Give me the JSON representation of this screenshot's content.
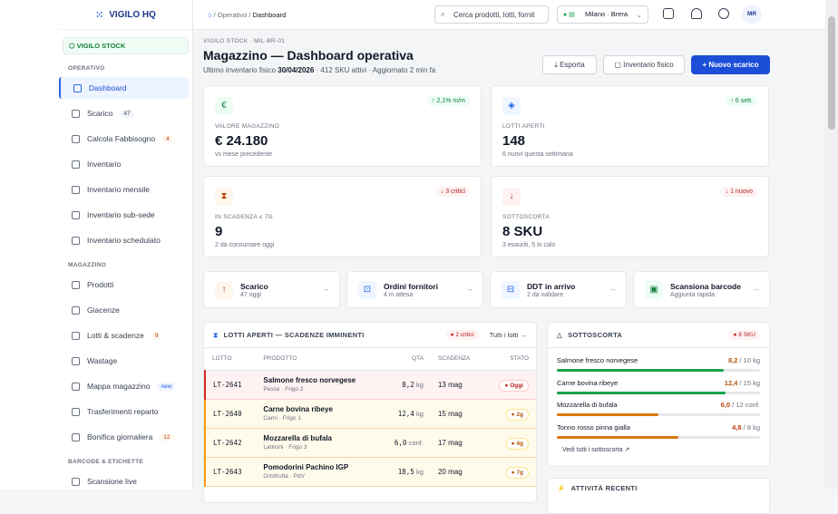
{
  "sidebar": {
    "brand": "VIGILO HQ",
    "org": "VIGILO STOCK",
    "active": "Dashboard",
    "sections": [
      {
        "title": "OPERATIVO",
        "items": [
          {
            "label": "Dashboard"
          },
          {
            "label": "Scarico",
            "badge": "47",
            "badge_tone": "gray"
          },
          {
            "label": "Calcola Fabbisogno",
            "badge": "4",
            "badge_tone": "orange"
          },
          {
            "label": "Inventario"
          },
          {
            "label": "Inventario mensile"
          },
          {
            "label": "Inventario sub-sede"
          },
          {
            "label": "Inventario schedulato"
          }
        ]
      },
      {
        "title": "MAGAZZINO",
        "items": [
          {
            "label": "Prodotti"
          },
          {
            "label": "Giacenze"
          },
          {
            "label": "Lotti & scadenze",
            "badge": "9",
            "badge_tone": "orange"
          },
          {
            "label": "Wastage"
          },
          {
            "label": "Mappa magazzino",
            "badge": "new",
            "badge_tone": "blue"
          },
          {
            "label": "Trasferimenti reparto"
          },
          {
            "label": "Bonifica giornaliera",
            "badge": "12",
            "badge_tone": "orange"
          }
        ]
      },
      {
        "title": "BARCODE & ETICHETTE",
        "items": [
          {
            "label": "Scansione live"
          }
        ]
      }
    ]
  },
  "topbar": {
    "breadcrumb": [
      "Operativo",
      "Dashboard"
    ],
    "search_placeholder": "Cerca prodotti, lotti, fornit",
    "location": "Milano · Brera",
    "avatar": "MR"
  },
  "header": {
    "eyebrow": "VIGILO STOCK · MIL-BR-01",
    "title": "Magazzino — Dashboard operativa",
    "subtitle_prefix": "Ultimo inventario fisico",
    "subtitle_date": "30/04/2026",
    "subtitle_suffix": "· 412 SKU attivi · Aggiornato 2 min fa",
    "buttons": [
      "Esporta",
      "Inventario fisico",
      "Nuovo scarico"
    ]
  },
  "kpis": [
    {
      "icon": "€",
      "label": "VALORE MAGAZZINO",
      "value": "€ 24.180",
      "note": "vs mese precedente",
      "delta": "↑ 2,1% m/m",
      "tone": "green"
    },
    {
      "icon": "◈",
      "label": "LOTTI APERTI",
      "value": "148",
      "note": "6 nuovi questa settimana",
      "delta": "↑ 6 sett.",
      "tone": "green"
    },
    {
      "icon": "⧗",
      "label": "IN SCADENZA ≤ 7G",
      "value": "9",
      "note": "2 da consumare oggi",
      "delta": "↓ 3 critici",
      "tone": "red"
    },
    {
      "icon": "↓",
      "label": "SOTTOSCORTA",
      "value": "8 SKU",
      "note": "3 esauriti, 5 in calo",
      "delta": "↓ 1 nuovo",
      "tone": "red"
    }
  ],
  "actions": [
    {
      "icon": "↑",
      "title": "Scarico",
      "sub": "47 oggi",
      "tone": "orange"
    },
    {
      "icon": "⊡",
      "title": "Ordini fornitori",
      "sub": "4 in attesa",
      "tone": "blue"
    },
    {
      "icon": "⊟",
      "title": "DDT in arrivo",
      "sub": "2 da validare",
      "tone": "blue"
    },
    {
      "icon": "▣",
      "title": "Scansiona barcode",
      "sub": "Aggiunta rapida",
      "tone": "green"
    }
  ],
  "lots": {
    "title": "LOTTI APERTI — SCADENZE IMMINENTI",
    "badge": "2 critici",
    "link": "Tutti i lotti",
    "columns": [
      "LOTTO",
      "PRODOTTO",
      "QTA",
      "SCADENZA",
      "STATO"
    ],
    "rows": [
      {
        "code": "LT-2641",
        "product": "Salmone fresco norvegese",
        "sub": "Pesce · Frigo 2",
        "qty": "8,2",
        "unit": "kg",
        "date": "13 mag",
        "status": "Oggi",
        "tone": "critical"
      },
      {
        "code": "LT-2640",
        "product": "Carne bovina ribeye",
        "sub": "Carni · Frigo 1",
        "qty": "12,4",
        "unit": "kg",
        "date": "15 mag",
        "status": "2g",
        "tone": "warning"
      },
      {
        "code": "LT-2642",
        "product": "Mozzarella di bufala",
        "sub": "Latticini · Frigo 3",
        "qty": "6,0",
        "unit": "conf.",
        "date": "17 mag",
        "status": "4g",
        "tone": "warning"
      },
      {
        "code": "LT-2643",
        "product": "Pomodorini Pachino IGP",
        "sub": "Ortofrutta · PdV",
        "qty": "18,5",
        "unit": "kg",
        "date": "20 mag",
        "status": "7g",
        "tone": "warning"
      }
    ]
  },
  "understock": {
    "title": "SOTTOSCORTA",
    "badge": "8 SKU",
    "items": [
      {
        "name": "Salmone fresco norvegese",
        "level": "8,2",
        "max": "/ 10 kg",
        "tone": "green"
      },
      {
        "name": "Carne bovina ribeye",
        "level": "12,4",
        "max": "/ 15 kg",
        "tone": "green"
      },
      {
        "name": "Mozzarella di bufala",
        "level": "6,0",
        "max": "/ 12 conf.",
        "tone": "orange"
      },
      {
        "name": "Tonno rosso pinna gialla",
        "level": "4,8",
        "max": "/ 8 kg",
        "tone": "orange"
      }
    ],
    "link": "Vedi tutti i sottoscorta"
  },
  "activity": {
    "title": "ATTIVITÀ RECENTI"
  }
}
